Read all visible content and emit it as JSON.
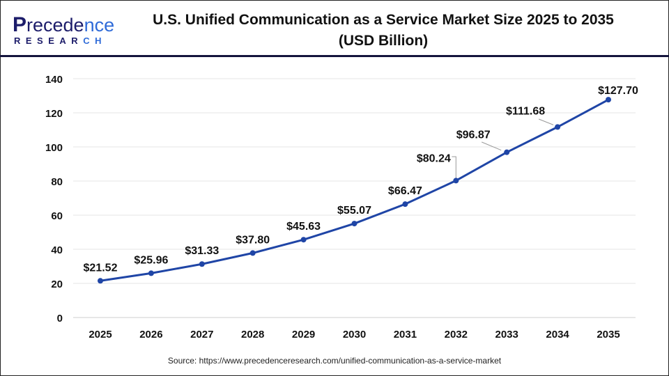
{
  "logo": {
    "line1_head": "P",
    "line1_mid": "recede",
    "line1_tail": "nce",
    "line2_head": "RESEAR",
    "line2_tail": "CH"
  },
  "title_line1": "U.S. Unified Communication as a Service Market Size 2025 to 2035",
  "title_line2": "(USD Billion)",
  "source": "Source: https://www.precedenceresearch.com/unified-communication-as-a-service-market",
  "colors": {
    "line": "#1f45a6",
    "header_rule": "#14143c",
    "grid": "#e6e6e6"
  },
  "chart_data": {
    "type": "line",
    "title": "U.S. Unified Communication as a Service Market Size 2025 to 2035 (USD Billion)",
    "categories": [
      "2025",
      "2026",
      "2027",
      "2028",
      "2029",
      "2030",
      "2031",
      "2032",
      "2033",
      "2034",
      "2035"
    ],
    "values": [
      21.52,
      25.96,
      31.33,
      37.8,
      45.63,
      55.07,
      66.47,
      80.24,
      96.87,
      111.68,
      127.7
    ],
    "labels": [
      "$21.52",
      "$25.96",
      "$31.33",
      "$37.80",
      "$45.63",
      "$55.07",
      "$66.47",
      "$80.24",
      "$96.87",
      "$111.68",
      "$127.70"
    ],
    "ylim": [
      0,
      140
    ],
    "yticks": [
      0,
      20,
      40,
      60,
      80,
      100,
      120,
      140
    ],
    "grid": true,
    "legend": "none"
  }
}
